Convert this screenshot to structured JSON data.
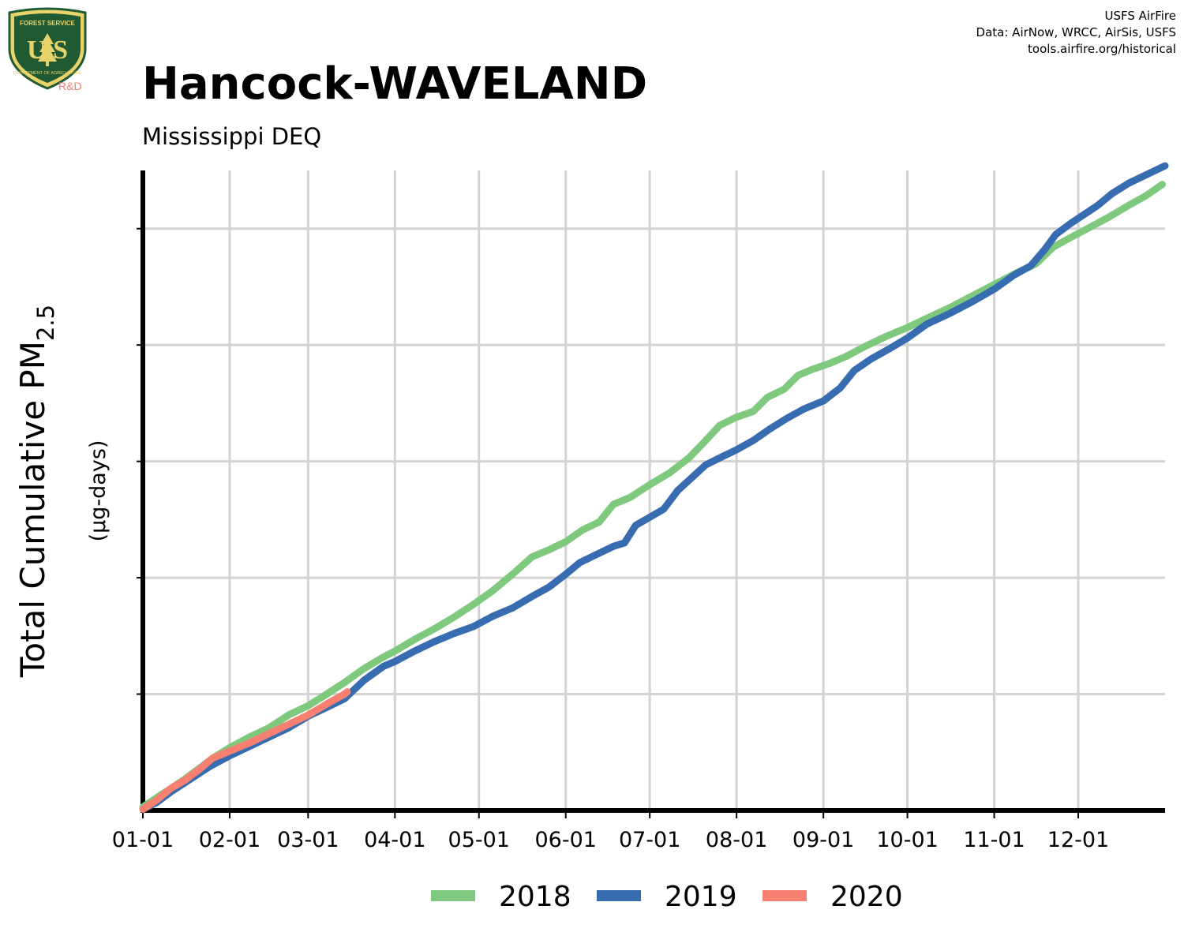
{
  "logo": {
    "top_text": "FOREST SERVICE",
    "letters": "U S",
    "bottom_text": "DEPARTMENT OF AGRICULTURE",
    "rd": "R&D"
  },
  "credits": {
    "line1": "USFS AirFire",
    "line2": "Data: AirNow, WRCC, AirSis, USFS",
    "line3": "tools.airfire.org/historical"
  },
  "colors": {
    "logo_green": "#1f5a33",
    "logo_gold": "#e8d26a",
    "rd_text": "#f08070",
    "grid": "#d3d3d3",
    "axis": "#000000"
  },
  "chart_data": {
    "type": "line",
    "title": "Hancock-WAVELAND",
    "subtitle": "Mississippi DEQ",
    "ylabel": "Total Cumulative PM",
    "ylabel_subscript": "2.5",
    "yunits": "(µg-days)",
    "xlabel": "",
    "x_ticks": [
      "01-01",
      "02-01",
      "03-01",
      "04-01",
      "05-01",
      "06-01",
      "07-01",
      "08-01",
      "09-01",
      "10-01",
      "11-01",
      "12-01"
    ],
    "x_tick_days": [
      0,
      31,
      59,
      90,
      120,
      151,
      181,
      212,
      243,
      273,
      304,
      334
    ],
    "xlim": [
      0,
      365
    ],
    "ylim": [
      0,
      5.5
    ],
    "y_ticks": [
      0,
      1,
      2,
      3,
      4,
      5
    ],
    "y_tick_labels_shown": false,
    "grid": true,
    "legend_position": "bottom",
    "series": [
      {
        "name": "2018",
        "color": "#7fc97f",
        "points": [
          [
            0,
            0.03
          ],
          [
            5,
            0.11
          ],
          [
            10,
            0.19
          ],
          [
            15,
            0.27
          ],
          [
            20,
            0.36
          ],
          [
            25,
            0.45
          ],
          [
            31,
            0.54
          ],
          [
            38,
            0.63
          ],
          [
            45,
            0.71
          ],
          [
            52,
            0.82
          ],
          [
            59,
            0.9
          ],
          [
            65,
            0.99
          ],
          [
            72,
            1.1
          ],
          [
            79,
            1.22
          ],
          [
            86,
            1.32
          ],
          [
            90,
            1.37
          ],
          [
            97,
            1.47
          ],
          [
            104,
            1.56
          ],
          [
            111,
            1.66
          ],
          [
            118,
            1.77
          ],
          [
            125,
            1.89
          ],
          [
            132,
            2.03
          ],
          [
            139,
            2.18
          ],
          [
            145,
            2.24
          ],
          [
            151,
            2.31
          ],
          [
            157,
            2.41
          ],
          [
            163,
            2.48
          ],
          [
            168,
            2.63
          ],
          [
            174,
            2.69
          ],
          [
            181,
            2.8
          ],
          [
            188,
            2.9
          ],
          [
            195,
            3.03
          ],
          [
            201,
            3.18
          ],
          [
            206,
            3.31
          ],
          [
            212,
            3.38
          ],
          [
            218,
            3.43
          ],
          [
            223,
            3.55
          ],
          [
            229,
            3.62
          ],
          [
            234,
            3.74
          ],
          [
            239,
            3.79
          ],
          [
            245,
            3.84
          ],
          [
            251,
            3.9
          ],
          [
            258,
            3.99
          ],
          [
            265,
            4.07
          ],
          [
            273,
            4.15
          ],
          [
            280,
            4.23
          ],
          [
            288,
            4.32
          ],
          [
            296,
            4.42
          ],
          [
            304,
            4.52
          ],
          [
            312,
            4.62
          ],
          [
            319,
            4.7
          ],
          [
            325,
            4.84
          ],
          [
            331,
            4.92
          ],
          [
            338,
            5.01
          ],
          [
            345,
            5.1
          ],
          [
            352,
            5.2
          ],
          [
            358,
            5.28
          ],
          [
            364,
            5.38
          ]
        ]
      },
      {
        "name": "2019",
        "color": "#386cb0",
        "points": [
          [
            0,
            0.01
          ],
          [
            5,
            0.07
          ],
          [
            10,
            0.16
          ],
          [
            17,
            0.27
          ],
          [
            24,
            0.38
          ],
          [
            31,
            0.47
          ],
          [
            38,
            0.55
          ],
          [
            45,
            0.63
          ],
          [
            52,
            0.71
          ],
          [
            59,
            0.81
          ],
          [
            66,
            0.89
          ],
          [
            72,
            0.96
          ],
          [
            79,
            1.12
          ],
          [
            86,
            1.24
          ],
          [
            90,
            1.28
          ],
          [
            97,
            1.37
          ],
          [
            104,
            1.45
          ],
          [
            111,
            1.52
          ],
          [
            118,
            1.58
          ],
          [
            125,
            1.67
          ],
          [
            132,
            1.74
          ],
          [
            139,
            1.84
          ],
          [
            145,
            1.92
          ],
          [
            151,
            2.03
          ],
          [
            156,
            2.13
          ],
          [
            162,
            2.2
          ],
          [
            168,
            2.27
          ],
          [
            172,
            2.3
          ],
          [
            176,
            2.45
          ],
          [
            181,
            2.52
          ],
          [
            186,
            2.59
          ],
          [
            191,
            2.75
          ],
          [
            196,
            2.86
          ],
          [
            201,
            2.97
          ],
          [
            206,
            3.03
          ],
          [
            212,
            3.1
          ],
          [
            218,
            3.18
          ],
          [
            224,
            3.28
          ],
          [
            230,
            3.37
          ],
          [
            236,
            3.45
          ],
          [
            243,
            3.52
          ],
          [
            249,
            3.63
          ],
          [
            254,
            3.78
          ],
          [
            260,
            3.88
          ],
          [
            266,
            3.96
          ],
          [
            273,
            4.06
          ],
          [
            280,
            4.18
          ],
          [
            288,
            4.27
          ],
          [
            296,
            4.37
          ],
          [
            304,
            4.48
          ],
          [
            311,
            4.6
          ],
          [
            317,
            4.68
          ],
          [
            322,
            4.82
          ],
          [
            326,
            4.95
          ],
          [
            331,
            5.04
          ],
          [
            336,
            5.12
          ],
          [
            341,
            5.2
          ],
          [
            346,
            5.3
          ],
          [
            352,
            5.39
          ],
          [
            358,
            5.46
          ],
          [
            365,
            5.54
          ]
        ]
      },
      {
        "name": "2020",
        "color": "#f88070",
        "points": [
          [
            0,
            0.01
          ],
          [
            5,
            0.09
          ],
          [
            10,
            0.19
          ],
          [
            15,
            0.26
          ],
          [
            20,
            0.35
          ],
          [
            25,
            0.45
          ],
          [
            31,
            0.51
          ],
          [
            38,
            0.58
          ],
          [
            45,
            0.66
          ],
          [
            52,
            0.74
          ],
          [
            59,
            0.82
          ],
          [
            66,
            0.92
          ],
          [
            72,
            1.0
          ],
          [
            73,
            1.02
          ]
        ]
      }
    ]
  }
}
